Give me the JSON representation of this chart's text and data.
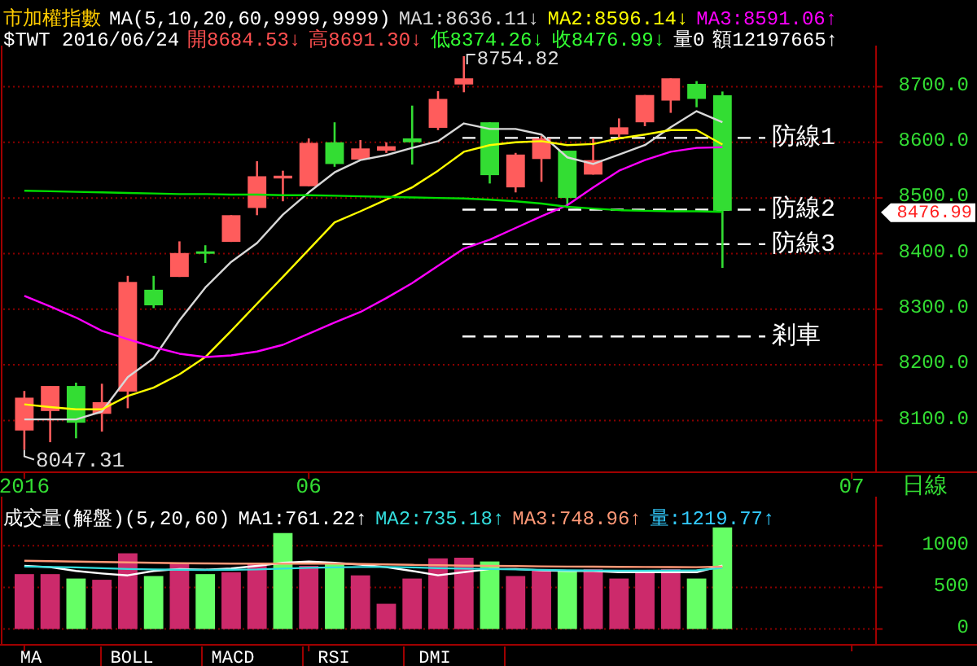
{
  "chart_data": [
    {
      "type": "candlestick",
      "title": "市加權指數",
      "subtitle": "$TWT 2016/06/24",
      "legend_title": "MA(5,10,20,60,9999,9999)",
      "xlabel": "日線",
      "legend": "top",
      "grid": "y",
      "categories": [
        "2016",
        null,
        null,
        null,
        null,
        null,
        null,
        null,
        null,
        null,
        null,
        "06",
        null,
        null,
        null,
        null,
        null,
        null,
        null,
        null,
        null,
        null,
        null,
        null,
        null,
        null,
        null,
        null,
        null,
        null,
        null,
        null,
        "07"
      ],
      "ohlc": [
        [
          8082,
          8153,
          8047.31,
          8141
        ],
        [
          8117,
          8162,
          8061,
          8162
        ],
        [
          8162,
          8168,
          8068,
          8096
        ],
        [
          8112,
          8166,
          8080,
          8133
        ],
        [
          8152,
          8360,
          8122,
          8349
        ],
        [
          8335,
          8360,
          8302,
          8307
        ],
        [
          8358,
          8422,
          8358,
          8401
        ],
        [
          8404,
          8415,
          8383,
          8403
        ],
        [
          8421,
          8469,
          8421,
          8469
        ],
        [
          8482,
          8566,
          8469,
          8539
        ],
        [
          8535,
          8549,
          8494,
          8540
        ],
        [
          8521,
          8607,
          8521,
          8599
        ],
        [
          8600,
          8636,
          8556,
          8561
        ],
        [
          8569,
          8604,
          8569,
          8589
        ],
        [
          8585,
          8600,
          8581,
          8593
        ],
        [
          8607,
          8666,
          8560,
          8600
        ],
        [
          8626,
          8692,
          8622,
          8678
        ],
        [
          8704,
          8754.82,
          8690,
          8715
        ],
        [
          8636,
          8636,
          8526,
          8541
        ],
        [
          8519,
          8581,
          8510,
          8578
        ],
        [
          8570,
          8612,
          8529,
          8607
        ],
        [
          8585,
          8585,
          8482,
          8500
        ],
        [
          8542,
          8607,
          8542,
          8568
        ],
        [
          8614,
          8643,
          8607,
          8627
        ],
        [
          8636,
          8685,
          8629,
          8685
        ],
        [
          8675,
          8715,
          8653,
          8715
        ],
        [
          8705,
          8710,
          8663,
          8678
        ],
        [
          8684.53,
          8691.3,
          8374.26,
          8476.99
        ],
        null,
        null,
        null,
        null,
        null
      ],
      "colors": [
        "#ff5c5c",
        "#ff5c5c",
        "#33dd33",
        "#ff5c5c",
        "#ff5c5c",
        "#33dd33",
        "#ff5c5c",
        "#33dd33",
        "#ff5c5c",
        "#ff5c5c",
        "#ff5c5c",
        "#ff5c5c",
        "#33dd33",
        "#ff5c5c",
        "#ff5c5c",
        "#33dd33",
        "#ff5c5c",
        "#ff5c5c",
        "#33dd33",
        "#ff5c5c",
        "#ff5c5c",
        "#33dd33",
        "#ff5c5c",
        "#ff5c5c",
        "#ff5c5c",
        "#ff5c5c",
        "#33dd33",
        "#33dd33",
        null,
        null,
        null,
        null,
        null
      ],
      "series": [
        {
          "type": "line",
          "name": "MA1:8636.11↓",
          "color": "#d8d8d8",
          "values": [
            8102,
            8102,
            8102,
            8116,
            8178,
            8212,
            8280,
            8339,
            8385,
            8419,
            8470,
            8510,
            8546,
            8568,
            8577,
            8590,
            8602,
            8634,
            8624,
            8624,
            8614,
            8573,
            8561,
            8578,
            8595,
            8627,
            8656,
            8636.11,
            null,
            null,
            null,
            null,
            null
          ]
        },
        {
          "type": "line",
          "name": "MA2:8596.14↓",
          "color": "#ffff00",
          "values": [
            8129,
            8124,
            8120,
            8120,
            8144,
            8159,
            8183,
            8214,
            8261,
            8310,
            8358,
            8407,
            8456,
            8476,
            8497,
            8519,
            8549,
            8583,
            8595,
            8600,
            8602,
            8595,
            8597,
            8607,
            8614,
            8622,
            8622,
            8596.14,
            null,
            null,
            null,
            null,
            null
          ]
        },
        {
          "type": "line",
          "name": "MA3:8591.06↑",
          "color": "#ff00ff",
          "values": [
            8324,
            8305,
            8285,
            8261,
            8246,
            8232,
            8220,
            8214,
            8217,
            8224,
            8236,
            8256,
            8276,
            8295,
            8320,
            8347,
            8378,
            8409,
            8425,
            8446,
            8467,
            8487,
            8519,
            8549,
            8568,
            8583,
            8590,
            8591.06,
            null,
            null,
            null,
            null,
            null
          ]
        },
        {
          "type": "line",
          "color": "#00dd00",
          "values": [
            8513,
            8512,
            8511,
            8510,
            8509,
            8508,
            8507,
            8507,
            8506,
            8506,
            8505,
            8505,
            8504,
            8503,
            8502,
            8501,
            8500,
            8499,
            8497,
            8494,
            8490,
            8484,
            8481,
            8478,
            8477,
            8476,
            8476,
            8475,
            null,
            null,
            null,
            null,
            null
          ]
        }
      ],
      "ylim": [
        8007,
        8768
      ],
      "yticks": [
        {
          "value": 8100,
          "label": "8100.0"
        },
        {
          "value": 8200,
          "label": "8200.0"
        },
        {
          "value": 8300,
          "label": "8300.0"
        },
        {
          "value": 8400,
          "label": "8400.0"
        },
        {
          "value": 8500,
          "label": "8500.0"
        },
        {
          "value": 8600,
          "label": "8600.0"
        },
        {
          "value": 8700,
          "label": "8700.0"
        }
      ],
      "ref_lines": [
        {
          "axis": "y",
          "value": 8608,
          "label": "防線1",
          "color": "#ffffff",
          "line_style": "dashed"
        },
        {
          "axis": "y",
          "value": 8479,
          "label": "防線2",
          "color": "#ffffff",
          "line_style": "dashed"
        },
        {
          "axis": "y",
          "value": 8417,
          "label": "防線3",
          "color": "#ffffff",
          "line_style": "dashed"
        },
        {
          "axis": "y",
          "value": 8251,
          "label": "剎車",
          "color": "#ffffff",
          "line_style": "dashed"
        }
      ],
      "annotations": [
        "開8684.53↓",
        "高8691.30↓",
        "低8374.26↓",
        "收8476.99↓",
        "量0",
        "額12197665↑",
        "8754.82",
        "8047.31",
        "8476.99"
      ]
    },
    {
      "type": "bar",
      "title": "成交量(解盤)(5,20,60)",
      "legend": "top",
      "grid": "y",
      "tick_labels": "y",
      "categories": [
        "2016",
        null,
        null,
        null,
        null,
        null,
        null,
        null,
        null,
        null,
        null,
        "06",
        null,
        null,
        null,
        null,
        null,
        null,
        null,
        null,
        null,
        null,
        null,
        null,
        null,
        null,
        null,
        null,
        null,
        null,
        null,
        null,
        "07"
      ],
      "values": [
        659,
        659,
        606,
        591,
        909,
        636,
        795,
        659,
        682,
        780,
        1152,
        758,
        780,
        644,
        303,
        606,
        848,
        856,
        811,
        636,
        720,
        705,
        720,
        606,
        697,
        720,
        606,
        1219.77,
        null,
        null,
        null,
        null,
        null
      ],
      "colors": [
        "#cc2a6b",
        "#cc2a6b",
        "#66ff66",
        "#cc2a6b",
        "#cc2a6b",
        "#66ff66",
        "#cc2a6b",
        "#66ff66",
        "#cc2a6b",
        "#cc2a6b",
        "#66ff66",
        "#cc2a6b",
        "#66ff66",
        "#cc2a6b",
        "#cc2a6b",
        "#cc2a6b",
        "#cc2a6b",
        "#cc2a6b",
        "#66ff66",
        "#cc2a6b",
        "#cc2a6b",
        "#66ff66",
        "#cc2a6b",
        "#cc2a6b",
        "#cc2a6b",
        "#cc2a6b",
        "#66ff66",
        "#66ff66",
        null,
        null,
        null,
        null,
        null
      ],
      "series": [
        {
          "type": "line",
          "name": "MA1:761.22↑",
          "color": "#ffffff",
          "values": [
            758,
            742,
            697,
            667,
            644,
            697,
            720,
            712,
            727,
            758,
            795,
            811,
            795,
            773,
            742,
            697,
            644,
            682,
            720,
            720,
            705,
            697,
            697,
            682,
            682,
            682,
            682,
            761.22,
            null,
            null,
            null,
            null,
            null
          ]
        },
        {
          "type": "line",
          "name": "MA2:735.18↑",
          "color": "#33dddd",
          "values": [
            750,
            745,
            740,
            730,
            720,
            715,
            712,
            710,
            712,
            715,
            725,
            735,
            740,
            745,
            745,
            740,
            730,
            725,
            720,
            715,
            710,
            705,
            702,
            700,
            700,
            702,
            705,
            735.18,
            null,
            null,
            null,
            null,
            null
          ]
        },
        {
          "type": "line",
          "name": "MA3:748.96↑",
          "color": "#ff9977",
          "values": [
            820,
            815,
            810,
            805,
            800,
            795,
            790,
            788,
            785,
            785,
            785,
            785,
            785,
            780,
            775,
            770,
            765,
            760,
            758,
            755,
            752,
            750,
            748,
            746,
            745,
            744,
            742,
            748.96,
            null,
            null,
            null,
            null,
            null
          ]
        }
      ],
      "ylim": [
        -190,
        1550
      ],
      "yticks": [
        0,
        500,
        1000
      ],
      "annotations": [
        "量:1219.77↑"
      ]
    },
    {
      "type": "other",
      "annotations": [
        "MA",
        "BOLL",
        "MACD",
        "RSI",
        "DMI"
      ]
    }
  ]
}
